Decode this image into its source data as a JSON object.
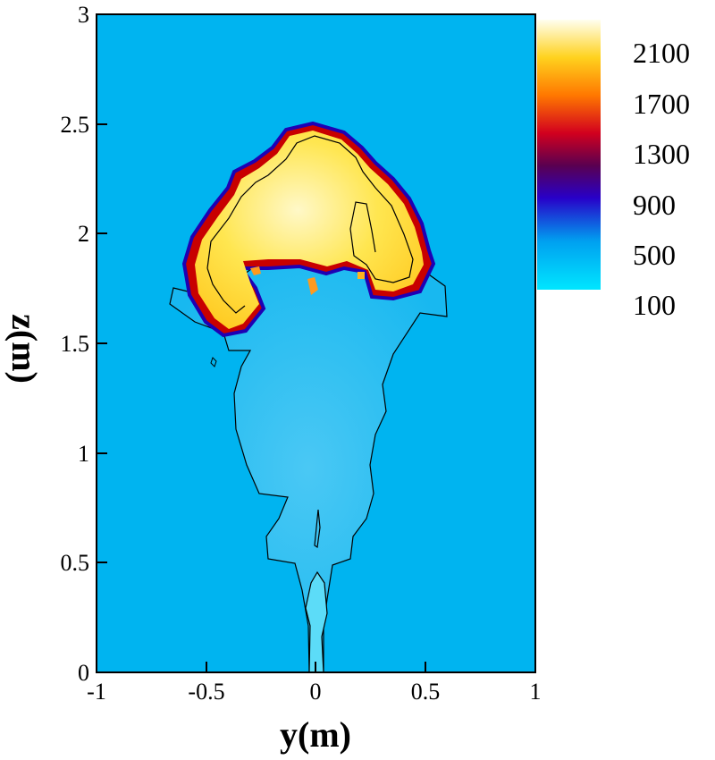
{
  "chart_data": {
    "type": "heatmap",
    "title": "",
    "xlabel": "y(m)",
    "ylabel": "z(m)",
    "xlim": [
      -1,
      1
    ],
    "ylim": [
      0,
      3
    ],
    "x_ticks": [
      "-1",
      "-0.5",
      "0",
      "0.5",
      "1"
    ],
    "y_ticks": [
      "0",
      "0.5",
      "1",
      "1.5",
      "2",
      "2.5",
      "3"
    ],
    "colorbar": {
      "levels": [
        "2100",
        "1700",
        "1300",
        "900",
        "500",
        "100"
      ],
      "colors": [
        "#fffff0",
        "#ffd21e",
        "#ff7800",
        "#d2001e",
        "#5a0050",
        "#2800c8",
        "#00a0f0",
        "#00e6ff"
      ]
    },
    "background_color": "#00b4f0",
    "features": {
      "hot_cap": {
        "y_range": [
          -0.55,
          0.52
        ],
        "z_range": [
          1.58,
          2.5
        ],
        "description_color": "#ffdc32"
      },
      "plume_stem": {
        "y_range": [
          -0.38,
          0.38
        ],
        "z_range": [
          0.0,
          1.9
        ]
      },
      "jet_nozzle": {
        "y_range": [
          -0.02,
          0.04
        ],
        "z_range": [
          0.0,
          0.5
        ]
      }
    }
  }
}
